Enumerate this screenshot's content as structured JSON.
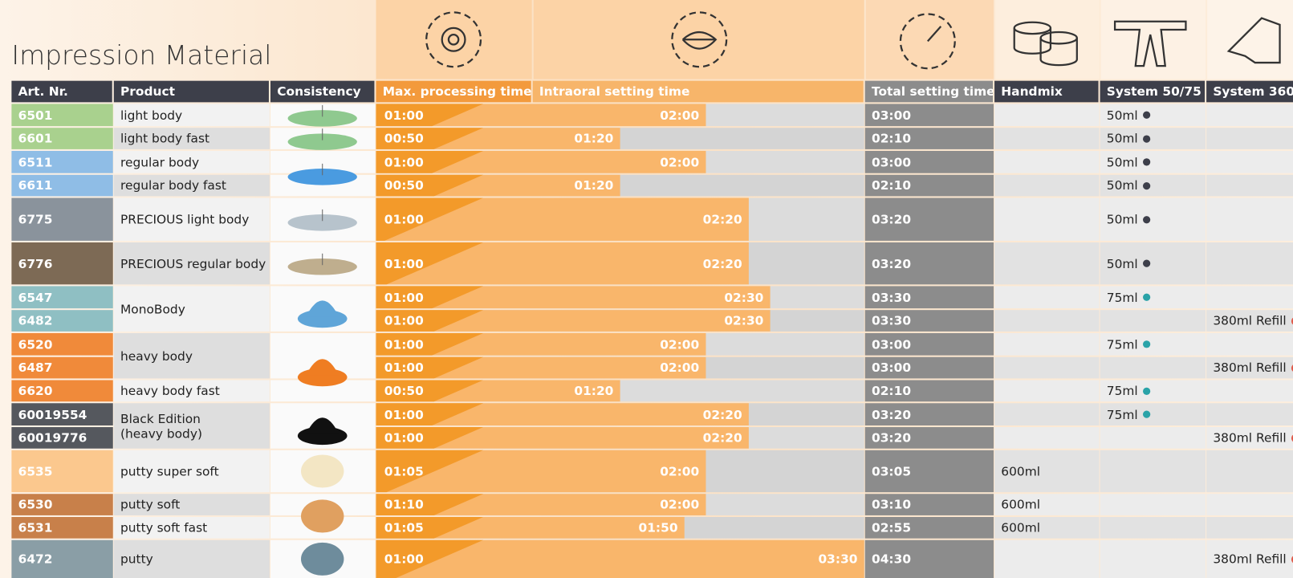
{
  "header": {
    "title": "Impression Material"
  },
  "table": {
    "columns": [
      "Art. Nr.",
      "Product",
      "Consistency",
      "Max. processing time",
      "Intraoral setting time",
      "Total setting time",
      "Handmix",
      "System 50/75",
      "System 360"
    ],
    "rows": [
      {
        "art": "6501",
        "color": "#a9d18e",
        "max": "01:00",
        "intraoral": "02:00",
        "total": "03:00",
        "system_50_75": "50ml",
        "dot": "#3d3f4a"
      },
      {
        "art": "6601",
        "color": "#a9d18e",
        "max": "00:50",
        "intraoral": "01:20",
        "total": "02:10",
        "system_50_75": "50ml",
        "dot": "#3d3f4a"
      },
      {
        "art": "6511",
        "color": "#8fbde6",
        "max": "01:00",
        "intraoral": "02:00",
        "total": "03:00",
        "system_50_75": "50ml",
        "dot": "#3d3f4a"
      },
      {
        "art": "6611",
        "color": "#8fbde6",
        "max": "00:50",
        "intraoral": "01:20",
        "total": "02:10",
        "system_50_75": "50ml",
        "dot": "#3d3f4a"
      },
      {
        "art": "6775",
        "color": "#8a939c",
        "max": "01:00",
        "intraoral": "02:20",
        "total": "03:20",
        "system_50_75": "50ml",
        "dot": "#3d3f4a"
      },
      {
        "art": "6776",
        "color": "#7d6a55",
        "max": "01:00",
        "intraoral": "02:20",
        "total": "03:20",
        "system_50_75": "50ml",
        "dot": "#3d3f4a"
      },
      {
        "art": "6547",
        "color": "#8fbfc3",
        "max": "01:00",
        "intraoral": "02:30",
        "total": "03:30",
        "system_50_75": "75ml",
        "dot": "#2aa3a8"
      },
      {
        "art": "6482",
        "color": "#8fbfc3",
        "max": "01:00",
        "intraoral": "02:30",
        "total": "03:30",
        "system_360": "380ml Refill",
        "dot": "#e05a4a"
      },
      {
        "art": "6520",
        "color": "#f08a3a",
        "max": "01:00",
        "intraoral": "02:00",
        "total": "03:00",
        "system_50_75": "75ml",
        "dot": "#2aa3a8"
      },
      {
        "art": "6487",
        "color": "#f08a3a",
        "max": "01:00",
        "intraoral": "02:00",
        "total": "03:00",
        "system_360": "380ml Refill",
        "dot": "#e05a4a"
      },
      {
        "art": "6620",
        "color": "#f08a3a",
        "max": "00:50",
        "intraoral": "01:20",
        "total": "02:10",
        "system_50_75": "75ml",
        "dot": "#2aa3a8"
      },
      {
        "art": "60019554",
        "color": "#55585e",
        "max": "01:00",
        "intraoral": "02:20",
        "total": "03:20",
        "system_50_75": "75ml",
        "dot": "#2aa3a8"
      },
      {
        "art": "60019776",
        "color": "#55585e",
        "max": "01:00",
        "intraoral": "02:20",
        "total": "03:20",
        "system_360": "380ml Refill",
        "dot": "#e05a4a"
      },
      {
        "art": "6535",
        "color": "#fbc88e",
        "max": "01:05",
        "intraoral": "02:00",
        "total": "03:05",
        "handmix": "600ml"
      },
      {
        "art": "6530",
        "color": "#c8804a",
        "max": "01:10",
        "intraoral": "02:00",
        "total": "03:10",
        "handmix": "600ml"
      },
      {
        "art": "6531",
        "color": "#c8804a",
        "max": "01:05",
        "intraoral": "01:50",
        "total": "02:55",
        "handmix": "600ml"
      },
      {
        "art": "6472",
        "color": "#8a9ea6",
        "max": "01:00",
        "intraoral": "03:30",
        "total": "04:30",
        "system_360": "380ml Refill",
        "dot": "#e05a4a"
      }
    ],
    "products": [
      {
        "lines": [
          "light body"
        ],
        "rows": [
          0
        ]
      },
      {
        "lines": [
          "light body fast"
        ],
        "rows": [
          1
        ]
      },
      {
        "lines": [
          "regular body"
        ],
        "rows": [
          2
        ]
      },
      {
        "lines": [
          "regular body fast"
        ],
        "rows": [
          3
        ]
      },
      {
        "lines": [
          "PRECIOUS light body"
        ],
        "rows": [
          4
        ]
      },
      {
        "lines": [
          "PRECIOUS regular body"
        ],
        "rows": [
          5
        ]
      },
      {
        "lines": [
          "MonoBody"
        ],
        "rows": [
          6,
          7
        ]
      },
      {
        "lines": [
          "heavy body"
        ],
        "rows": [
          8,
          9
        ]
      },
      {
        "lines": [
          "heavy body fast"
        ],
        "rows": [
          10
        ]
      },
      {
        "lines": [
          "Black Edition",
          "(heavy body)"
        ],
        "rows": [
          11,
          12
        ]
      },
      {
        "lines": [
          "putty super soft"
        ],
        "rows": [
          13
        ]
      },
      {
        "lines": [
          "putty soft"
        ],
        "rows": [
          14
        ]
      },
      {
        "lines": [
          "putty soft fast"
        ],
        "rows": [
          15
        ]
      },
      {
        "lines": [
          "putty"
        ],
        "rows": [
          16
        ]
      }
    ]
  }
}
